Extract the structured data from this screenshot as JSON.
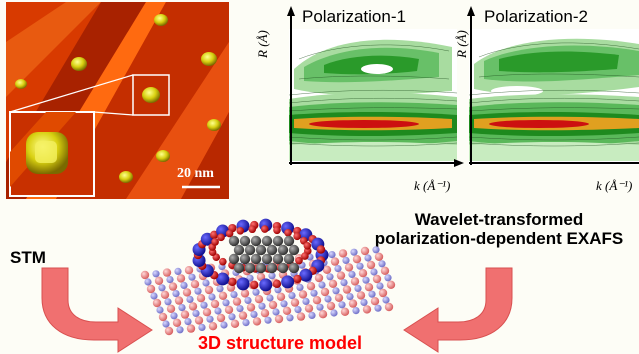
{
  "stm_panel": {
    "scale_bar_label": "20 nm"
  },
  "exafs_panels": [
    {
      "title": "Polarization-1",
      "y_axis": "R (Å)",
      "x_axis": "k (Å⁻¹)"
    },
    {
      "title": "Polarization-2",
      "y_axis": "R (Å)",
      "x_axis": "k (Å⁻¹)"
    }
  ],
  "labels": {
    "stm": "STM",
    "wavelet_line1": "Wavelet-transformed",
    "wavelet_line2": "polarization-dependent EXAFS",
    "model": "3D structure model"
  },
  "colors": {
    "arrow": "#f07070",
    "model_label": "#ff0000",
    "stm_terrace_dark": "#b82a00",
    "stm_terrace_light": "#e84a00",
    "island": "#e8e020",
    "contour_green": "#2a9a2a",
    "contour_red": "#cc1010"
  }
}
